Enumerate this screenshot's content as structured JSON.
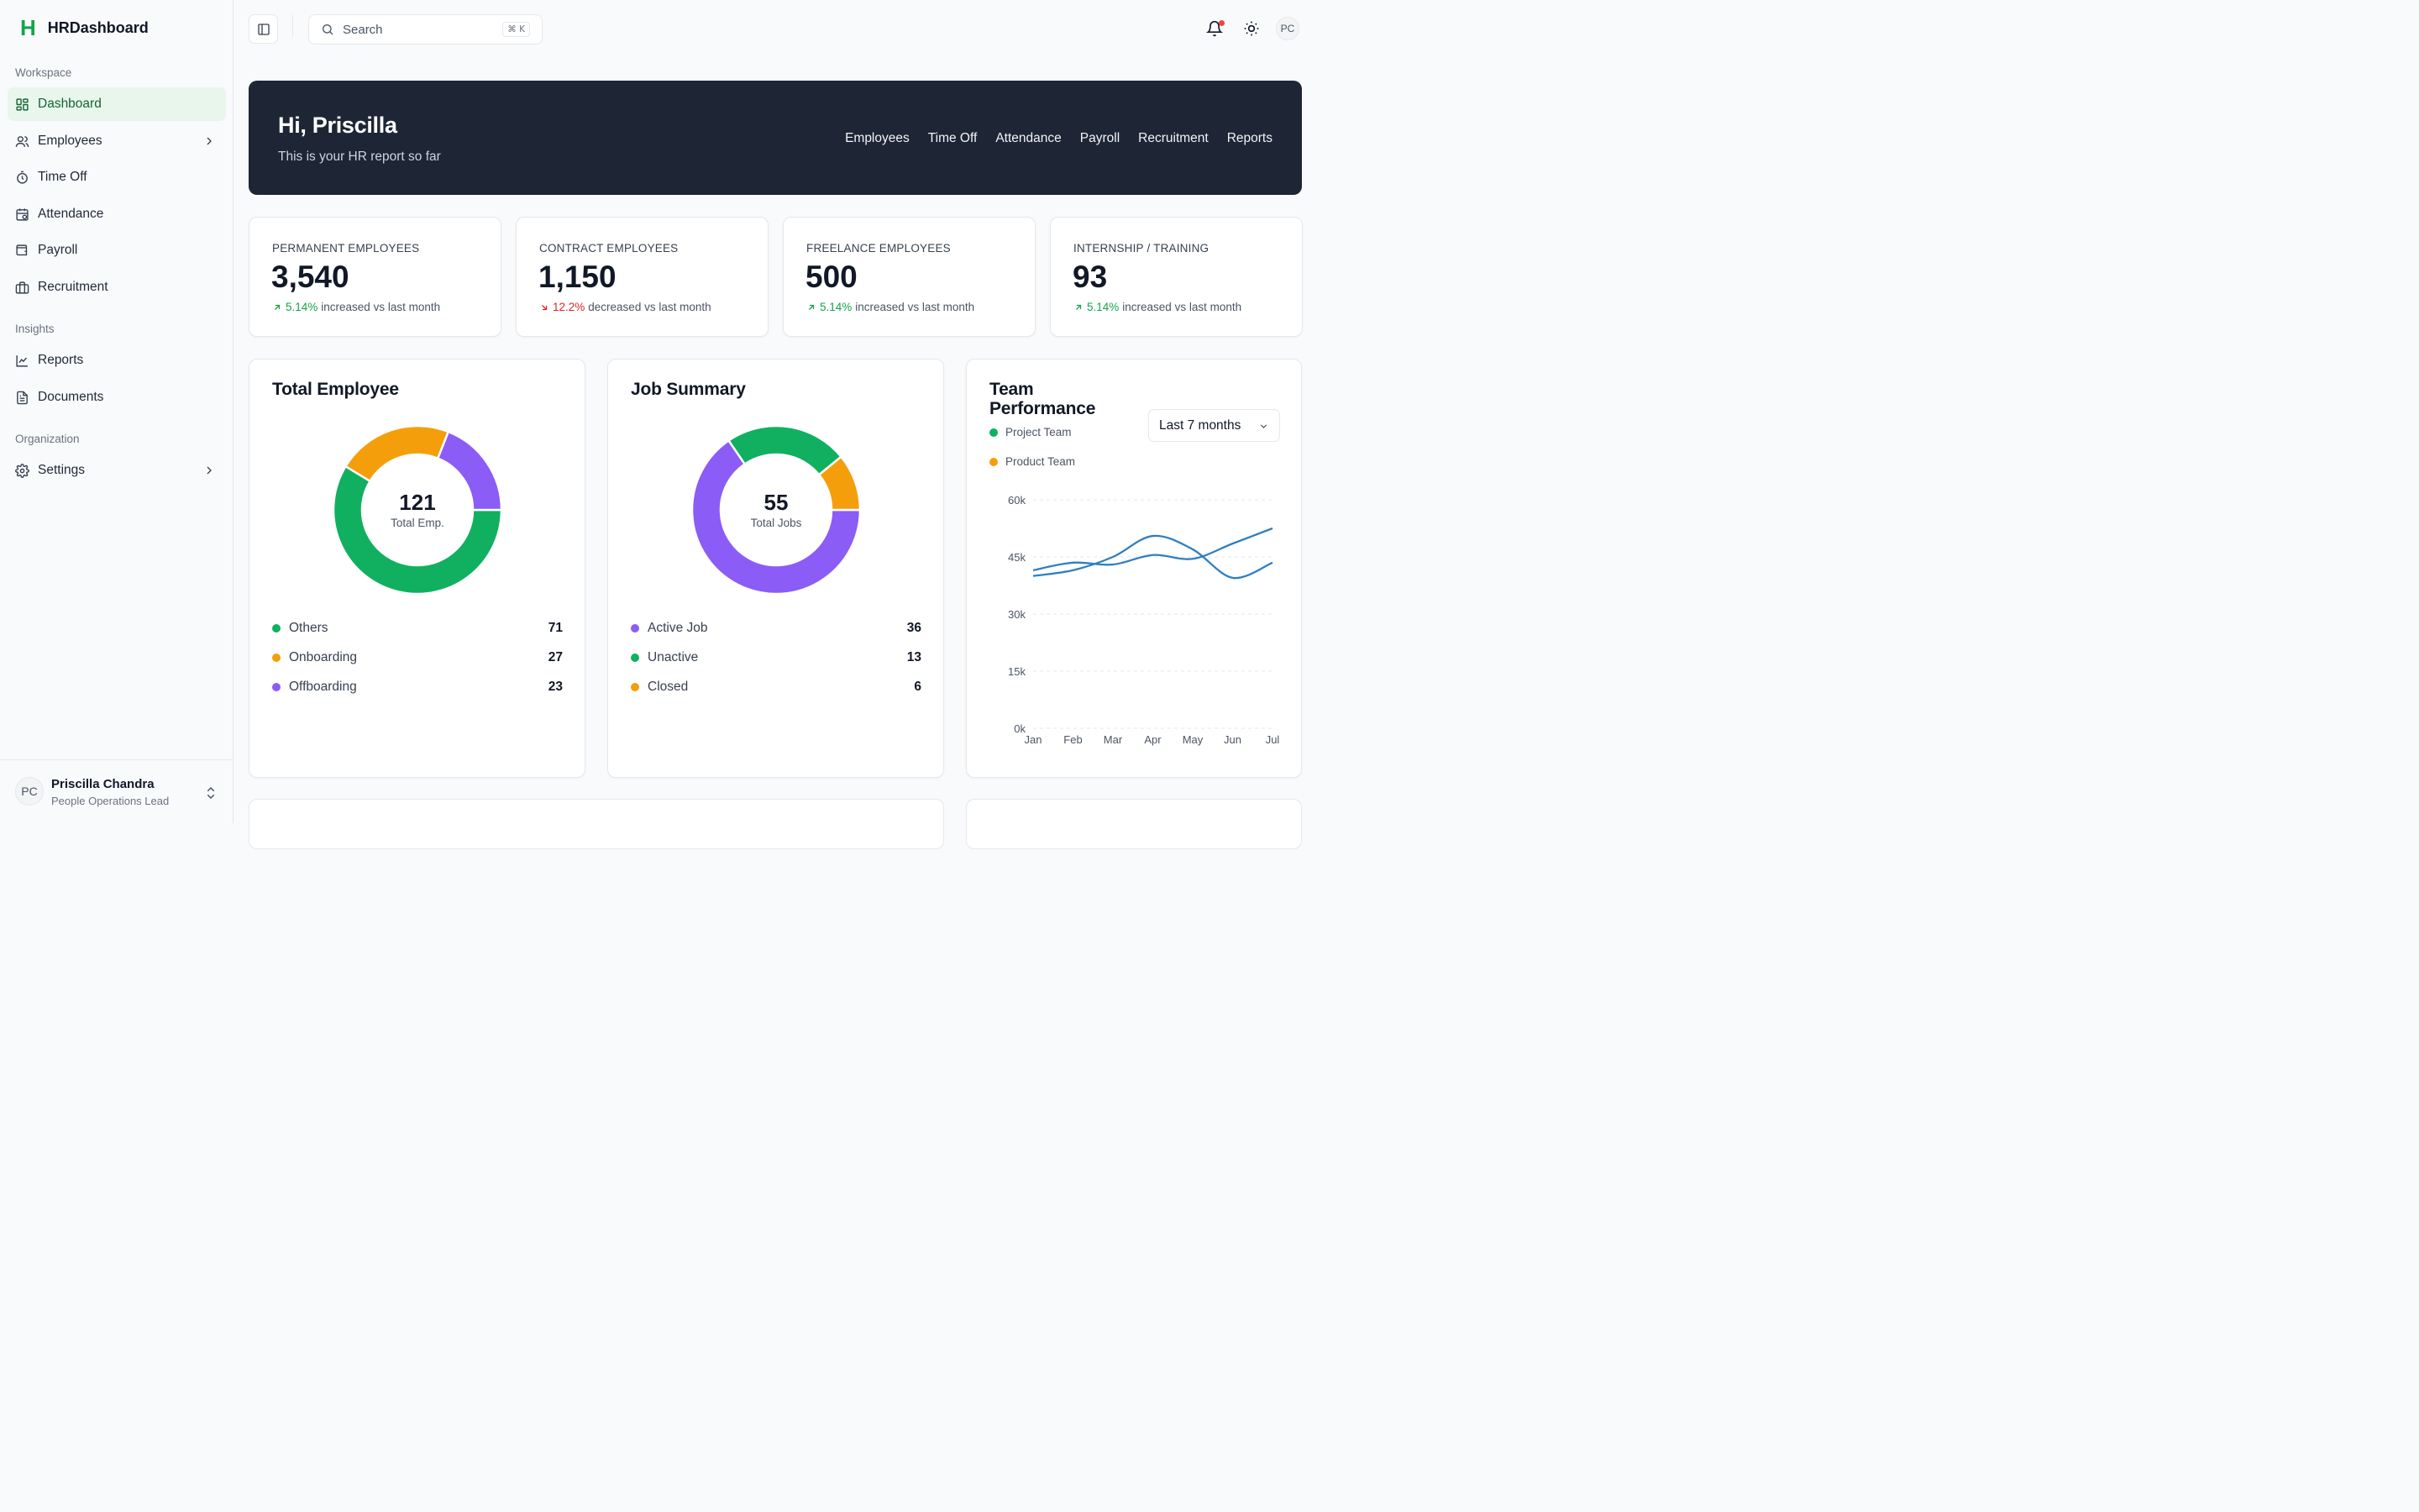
{
  "brand": {
    "logo": "H",
    "name": "HRDashboard",
    "accent": "#16a34a"
  },
  "sidebar": {
    "sections": [
      {
        "label": "Workspace"
      },
      {
        "label": "Insights"
      },
      {
        "label": "Organization"
      }
    ],
    "items": [
      {
        "label": "Dashboard",
        "icon": "dashboard-icon",
        "active": true
      },
      {
        "label": "Employees",
        "icon": "users-icon",
        "expandable": true
      },
      {
        "label": "Time Off",
        "icon": "timer-icon"
      },
      {
        "label": "Attendance",
        "icon": "calendar-clock-icon"
      },
      {
        "label": "Payroll",
        "icon": "wallet-icon"
      },
      {
        "label": "Recruitment",
        "icon": "briefcase-icon"
      },
      {
        "label": "Reports",
        "icon": "line-chart-icon"
      },
      {
        "label": "Documents",
        "icon": "document-icon"
      },
      {
        "label": "Settings",
        "icon": "gear-icon",
        "expandable": true
      }
    ],
    "user": {
      "initials": "PC",
      "name": "Priscilla Chandra",
      "role": "People Operations Lead"
    }
  },
  "topbar": {
    "search_placeholder": "Search",
    "shortcut": "⌘ K",
    "avatar_initials": "PC"
  },
  "hero": {
    "title": "Hi, Priscilla",
    "subtitle": "This is your HR report so far",
    "links": [
      "Employees",
      "Time Off",
      "Attendance",
      "Payroll",
      "Recruitment",
      "Reports"
    ]
  },
  "stats": [
    {
      "label": "PERMANENT EMPLOYEES",
      "value": "3,540",
      "change": "5.14%",
      "direction": "up",
      "suffix": "increased vs last month"
    },
    {
      "label": "CONTRACT EMPLOYEES",
      "value": "1,150",
      "change": "12.2%",
      "direction": "down",
      "suffix": "decreased vs last month"
    },
    {
      "label": "FREELANCE EMPLOYEES",
      "value": "500",
      "change": "5.14%",
      "direction": "up",
      "suffix": "increased vs last month"
    },
    {
      "label": "INTERNSHIP / TRAINING",
      "value": "93",
      "change": "5.14%",
      "direction": "up",
      "suffix": "increased vs last month"
    }
  ],
  "total_employee": {
    "title": "Total Employee",
    "center_value": "121",
    "center_label": "Total Emp.",
    "segments": [
      {
        "name": "Others",
        "value": 71,
        "color": "#10b060"
      },
      {
        "name": "Onboarding",
        "value": 27,
        "color": "#f59e0b"
      },
      {
        "name": "Offboarding",
        "value": 23,
        "color": "#8b5cf6"
      }
    ]
  },
  "job_summary": {
    "title": "Job Summary",
    "center_value": "55",
    "center_label": "Total Jobs",
    "segments": [
      {
        "name": "Active Job",
        "value": 36,
        "color": "#8b5cf6"
      },
      {
        "name": "Unactive",
        "value": 13,
        "color": "#10b060"
      },
      {
        "name": "Closed",
        "value": 6,
        "color": "#f59e0b"
      }
    ]
  },
  "team_performance": {
    "title_line1": "Team",
    "title_line2": "Performance",
    "range": "Last 7 months",
    "legend": [
      {
        "name": "Project Team",
        "color": "#10b060"
      },
      {
        "name": "Product Team",
        "color": "#f59e0b"
      }
    ]
  },
  "chart_data": [
    {
      "type": "pie",
      "title": "Total Employee",
      "categories": [
        "Others",
        "Onboarding",
        "Offboarding"
      ],
      "values": [
        71,
        27,
        23
      ]
    },
    {
      "type": "pie",
      "title": "Job Summary",
      "categories": [
        "Active Job",
        "Unactive",
        "Closed"
      ],
      "values": [
        36,
        13,
        6
      ]
    },
    {
      "type": "line",
      "title": "Team Performance",
      "x": [
        "Jan",
        "Feb",
        "Mar",
        "Apr",
        "May",
        "Jun",
        "Jul"
      ],
      "yticks": [
        "0k",
        "15k",
        "30k",
        "45k",
        "60k"
      ],
      "ylim": [
        0,
        60000
      ],
      "grid": true,
      "line_color": "#2f7fc1",
      "series": [
        {
          "name": "Project Team",
          "values": [
            40000,
            41500,
            45000,
            50500,
            47000,
            39500,
            43500
          ]
        },
        {
          "name": "Product Team",
          "values": [
            41500,
            43500,
            43000,
            45500,
            44500,
            48500,
            52500
          ]
        }
      ]
    }
  ]
}
